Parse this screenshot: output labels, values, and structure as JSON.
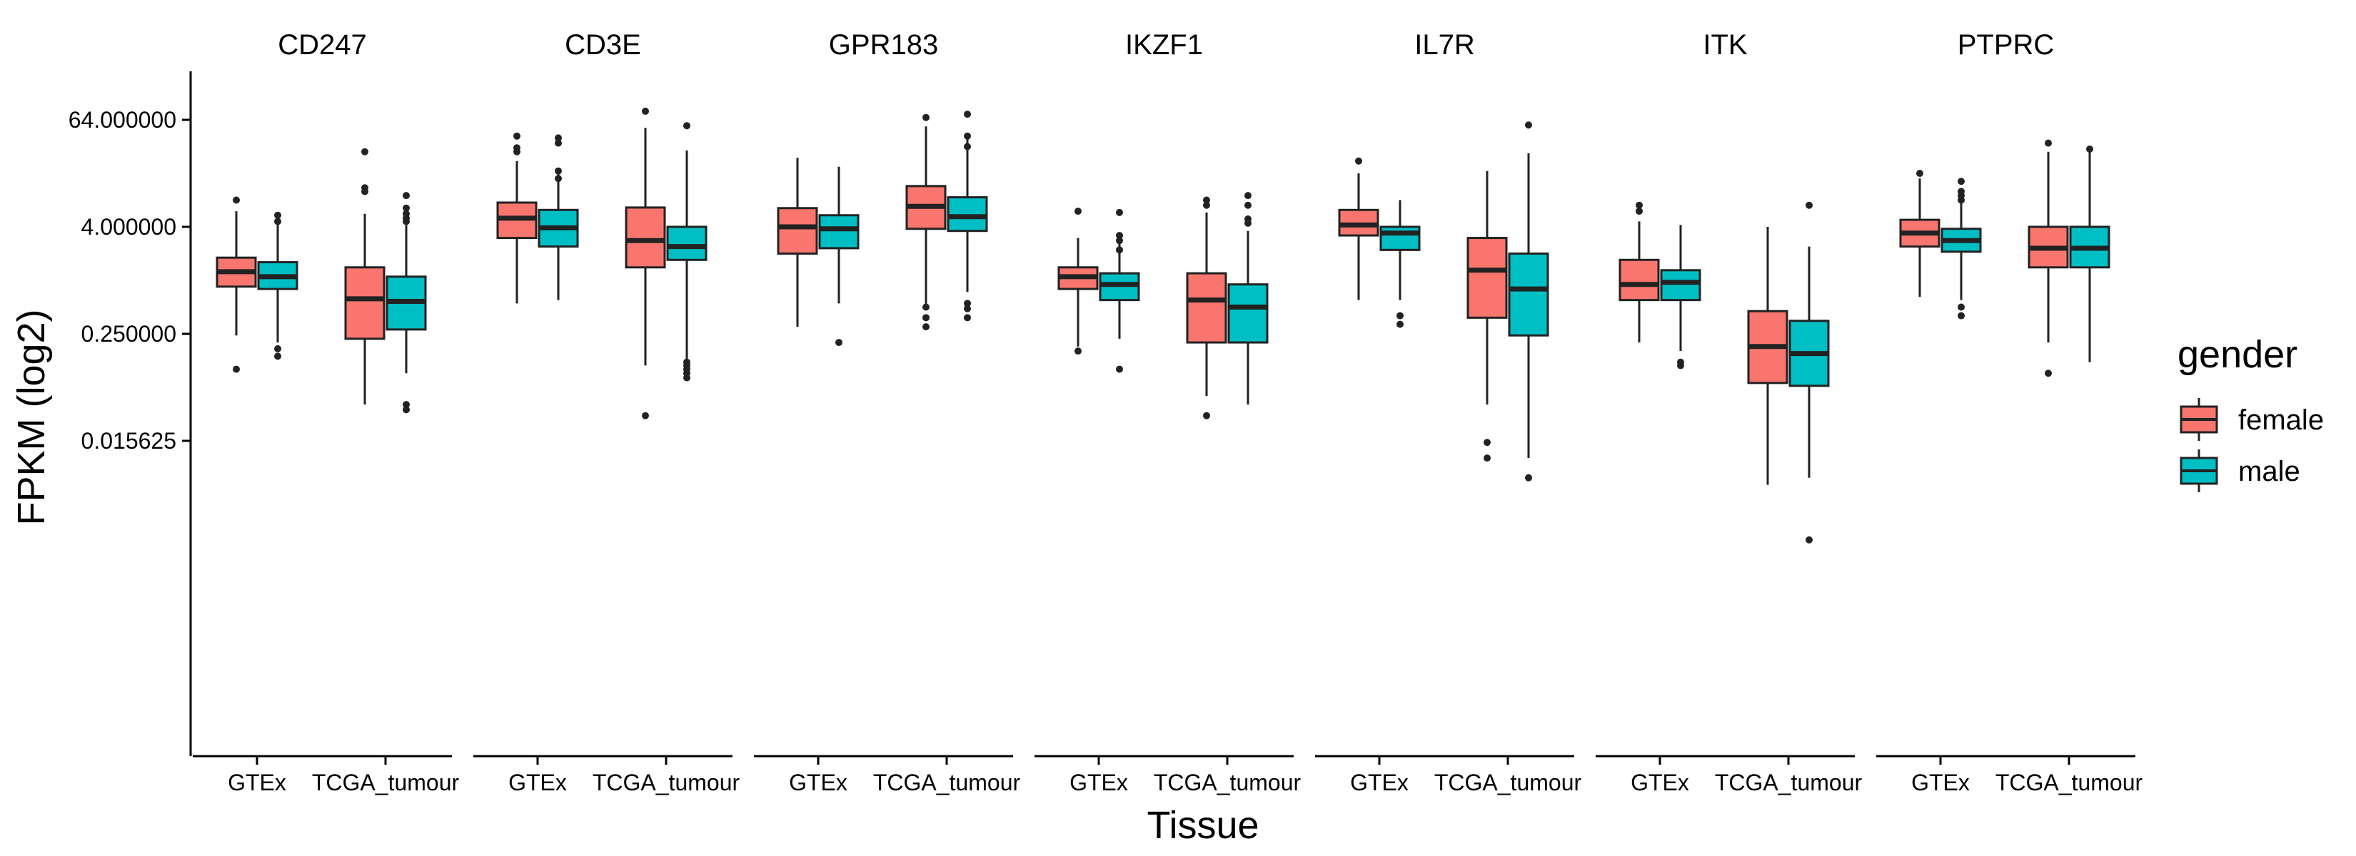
{
  "chart_data": {
    "type": "boxplot",
    "layout": "facet_wrap",
    "xlabel": "Tissue",
    "ylabel": "FPKM (log2)",
    "y_scale": "log2",
    "y_ticks": [
      {
        "value": 64,
        "label": "64.000000"
      },
      {
        "value": 4,
        "label": "4.000000"
      },
      {
        "value": 0.25,
        "label": "0.250000"
      },
      {
        "value": 0.015625,
        "label": "0.015625"
      }
    ],
    "categories": [
      "GTEx",
      "TCGA_tumour"
    ],
    "legend": {
      "title": "gender",
      "position": "right",
      "items": [
        {
          "name": "female",
          "color": "#F8766D"
        },
        {
          "name": "male",
          "color": "#00BFC4"
        }
      ]
    },
    "facets": [
      {
        "title": "CD247",
        "groups": [
          {
            "category": "GTEx",
            "gender": "female",
            "q1": 0.85,
            "median": 1.25,
            "q3": 1.8,
            "whisker_low": 0.24,
            "whisker_high": 6.0,
            "outliers": [
              0.1,
              8.0
            ]
          },
          {
            "category": "GTEx",
            "gender": "male",
            "q1": 0.8,
            "median": 1.1,
            "q3": 1.6,
            "whisker_low": 0.2,
            "whisker_high": 4.4,
            "outliers": [
              0.14,
              0.17,
              4.6,
              5.4
            ]
          },
          {
            "category": "TCGA_tumour",
            "gender": "female",
            "q1": 0.22,
            "median": 0.62,
            "q3": 1.4,
            "whisker_low": 0.04,
            "whisker_high": 5.6,
            "outliers": [
              10.0,
              11.0,
              28.0
            ]
          },
          {
            "category": "TCGA_tumour",
            "gender": "male",
            "q1": 0.28,
            "median": 0.58,
            "q3": 1.1,
            "whisker_low": 0.09,
            "whisker_high": 4.2,
            "outliers": [
              0.035,
              0.04,
              4.6,
              5.0,
              5.6,
              6.5,
              9.0
            ]
          }
        ]
      },
      {
        "title": "CD3E",
        "groups": [
          {
            "category": "GTEx",
            "gender": "female",
            "q1": 3.0,
            "median": 5.0,
            "q3": 7.5,
            "whisker_low": 0.55,
            "whisker_high": 22.0,
            "outliers": [
              28.0,
              31.0,
              42.0
            ]
          },
          {
            "category": "GTEx",
            "gender": "male",
            "q1": 2.4,
            "median": 3.9,
            "q3": 6.2,
            "whisker_low": 0.6,
            "whisker_high": 16.0,
            "outliers": [
              14.0,
              17.0,
              35.0,
              40.0
            ]
          },
          {
            "category": "TCGA_tumour",
            "gender": "female",
            "q1": 1.4,
            "median": 2.8,
            "q3": 6.6,
            "whisker_low": 0.11,
            "whisker_high": 52.0,
            "outliers": [
              0.03,
              80.0
            ]
          },
          {
            "category": "TCGA_tumour",
            "gender": "male",
            "q1": 1.7,
            "median": 2.4,
            "q3": 4.0,
            "whisker_low": 0.11,
            "whisker_high": 29.0,
            "outliers": [
              0.08,
              0.09,
              0.1,
              0.11,
              0.12,
              55.0
            ]
          }
        ]
      },
      {
        "title": "GPR183",
        "groups": [
          {
            "category": "GTEx",
            "gender": "female",
            "q1": 2.0,
            "median": 4.0,
            "q3": 6.5,
            "whisker_low": 0.3,
            "whisker_high": 24.0,
            "outliers": []
          },
          {
            "category": "GTEx",
            "gender": "male",
            "q1": 2.3,
            "median": 3.8,
            "q3": 5.4,
            "whisker_low": 0.55,
            "whisker_high": 19.0,
            "outliers": [
              0.2
            ]
          },
          {
            "category": "TCGA_tumour",
            "gender": "female",
            "q1": 3.8,
            "median": 6.8,
            "q3": 11.5,
            "whisker_low": 0.5,
            "whisker_high": 54.0,
            "outliers": [
              0.3,
              0.38,
              0.5,
              68.0
            ]
          },
          {
            "category": "TCGA_tumour",
            "gender": "male",
            "q1": 3.6,
            "median": 5.2,
            "q3": 8.6,
            "whisker_low": 0.74,
            "whisker_high": 40.0,
            "outliers": [
              0.38,
              0.48,
              0.55,
              32.0,
              42.0,
              74.0
            ]
          }
        ]
      },
      {
        "title": "IKZF1",
        "groups": [
          {
            "category": "GTEx",
            "gender": "female",
            "q1": 0.8,
            "median": 1.1,
            "q3": 1.4,
            "whisker_low": 0.18,
            "whisker_high": 3.0,
            "outliers": [
              0.16,
              6.0
            ]
          },
          {
            "category": "GTEx",
            "gender": "male",
            "q1": 0.6,
            "median": 0.9,
            "q3": 1.2,
            "whisker_low": 0.22,
            "whisker_high": 2.6,
            "outliers": [
              0.1,
              2.2,
              2.8,
              3.2,
              5.8
            ]
          },
          {
            "category": "TCGA_tumour",
            "gender": "female",
            "q1": 0.2,
            "median": 0.6,
            "q3": 1.2,
            "whisker_low": 0.05,
            "whisker_high": 5.8,
            "outliers": [
              0.03,
              7.0,
              8.0
            ]
          },
          {
            "category": "TCGA_tumour",
            "gender": "male",
            "q1": 0.2,
            "median": 0.5,
            "q3": 0.9,
            "whisker_low": 0.04,
            "whisker_high": 3.6,
            "outliers": [
              4.4,
              4.9,
              7.0,
              9.0
            ]
          }
        ]
      },
      {
        "title": "IL7R",
        "groups": [
          {
            "category": "GTEx",
            "gender": "female",
            "q1": 3.2,
            "median": 4.2,
            "q3": 6.2,
            "whisker_low": 0.6,
            "whisker_high": 16.0,
            "outliers": [
              22.0
            ]
          },
          {
            "category": "GTEx",
            "gender": "male",
            "q1": 2.2,
            "median": 3.4,
            "q3": 4.0,
            "whisker_low": 0.6,
            "whisker_high": 8.0,
            "outliers": [
              0.32,
              0.4
            ]
          },
          {
            "category": "TCGA_tumour",
            "gender": "female",
            "q1": 0.38,
            "median": 1.3,
            "q3": 3.0,
            "whisker_low": 0.04,
            "whisker_high": 17.0,
            "outliers": [
              0.01,
              0.015
            ]
          },
          {
            "category": "TCGA_tumour",
            "gender": "male",
            "q1": 0.24,
            "median": 0.8,
            "q3": 2.0,
            "whisker_low": 0.01,
            "whisker_high": 27.0,
            "outliers": [
              0.006,
              56.0
            ]
          }
        ]
      },
      {
        "title": "ITK",
        "groups": [
          {
            "category": "GTEx",
            "gender": "female",
            "q1": 0.6,
            "median": 0.9,
            "q3": 1.7,
            "whisker_low": 0.2,
            "whisker_high": 4.6,
            "outliers": [
              6.0,
              7.0
            ]
          },
          {
            "category": "GTEx",
            "gender": "male",
            "q1": 0.6,
            "median": 0.95,
            "q3": 1.3,
            "whisker_low": 0.16,
            "whisker_high": 4.2,
            "outliers": [
              0.11,
              0.12
            ]
          },
          {
            "category": "TCGA_tumour",
            "gender": "female",
            "q1": 0.07,
            "median": 0.18,
            "q3": 0.45,
            "whisker_low": 0.005,
            "whisker_high": 4.0,
            "outliers": []
          },
          {
            "category": "TCGA_tumour",
            "gender": "male",
            "q1": 0.065,
            "median": 0.15,
            "q3": 0.35,
            "whisker_low": 0.006,
            "whisker_high": 2.4,
            "outliers": [
              0.0012,
              7.0
            ]
          }
        ]
      },
      {
        "title": "PTPRC",
        "groups": [
          {
            "category": "GTEx",
            "gender": "female",
            "q1": 2.4,
            "median": 3.4,
            "q3": 4.8,
            "whisker_low": 0.65,
            "whisker_high": 14.0,
            "outliers": [
              16.0
            ]
          },
          {
            "category": "GTEx",
            "gender": "male",
            "q1": 2.1,
            "median": 2.8,
            "q3": 3.8,
            "whisker_low": 0.6,
            "whisker_high": 8.5,
            "outliers": [
              0.4,
              0.5,
              8.0,
              9.0,
              10.0,
              13.0
            ]
          },
          {
            "category": "TCGA_tumour",
            "gender": "female",
            "q1": 1.4,
            "median": 2.3,
            "q3": 4.0,
            "whisker_low": 0.2,
            "whisker_high": 28.0,
            "outliers": [
              0.09,
              35.0
            ]
          },
          {
            "category": "TCGA_tumour",
            "gender": "male",
            "q1": 1.4,
            "median": 2.3,
            "q3": 4.0,
            "whisker_low": 0.12,
            "whisker_high": 32.0,
            "outliers": [
              30.0
            ]
          }
        ]
      }
    ]
  }
}
